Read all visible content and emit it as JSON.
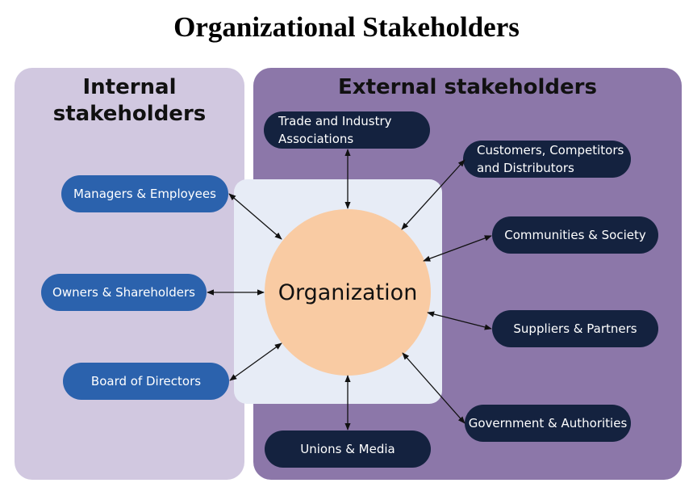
{
  "title": "Organizational Stakeholders",
  "internal": {
    "title": "Internal stakeholders",
    "items": [
      "Managers & Employees",
      "Owners & Shareholders",
      "Board of Directors"
    ]
  },
  "external": {
    "title": "External stakeholders",
    "items": [
      "Trade and Industry Associations",
      "Customers, Competitors and Distributors",
      "Communities & Society",
      "Suppliers & Partners",
      "Government & Authorities",
      "Unions & Media"
    ]
  },
  "center": "Organization",
  "colors": {
    "internal_panel": "#d1c8e0",
    "external_panel": "#8c77a9",
    "internal_node": "#2b62ad",
    "external_node": "#14223f",
    "center_circle": "#f9cba3"
  }
}
